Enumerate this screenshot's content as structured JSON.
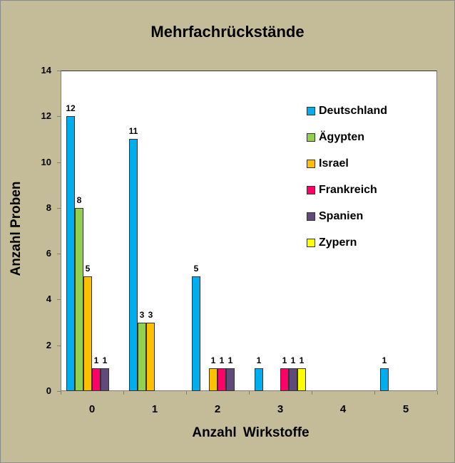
{
  "chart_data": {
    "type": "bar",
    "title": "Mehrfachrückstände",
    "xlabel": "Anzahl Wirkstoffe",
    "ylabel": "Anzahl Proben",
    "categories": [
      "0",
      "1",
      "2",
      "3",
      "4",
      "5"
    ],
    "ylim": [
      0,
      14
    ],
    "yticks": [
      "0",
      "2",
      "4",
      "6",
      "8",
      "10",
      "12",
      "14"
    ],
    "legend_position": "upper right inside plot",
    "grid": false,
    "series": [
      {
        "name": "Deutschland",
        "color": "#00aeef",
        "values": [
          12,
          11,
          5,
          1,
          null,
          1
        ]
      },
      {
        "name": "Ägypten",
        "color": "#92d050",
        "values": [
          8,
          3,
          null,
          null,
          null,
          null
        ]
      },
      {
        "name": "Israel",
        "color": "#ffc000",
        "values": [
          5,
          3,
          1,
          null,
          null,
          null
        ]
      },
      {
        "name": "Frankreich",
        "color": "#ff0066",
        "values": [
          1,
          null,
          1,
          1,
          null,
          null
        ]
      },
      {
        "name": "Spanien",
        "color": "#604a7b",
        "values": [
          1,
          null,
          1,
          1,
          null,
          null
        ]
      },
      {
        "name": "Zypern",
        "color": "#ffff00",
        "values": [
          null,
          null,
          null,
          1,
          null,
          null
        ]
      }
    ]
  }
}
